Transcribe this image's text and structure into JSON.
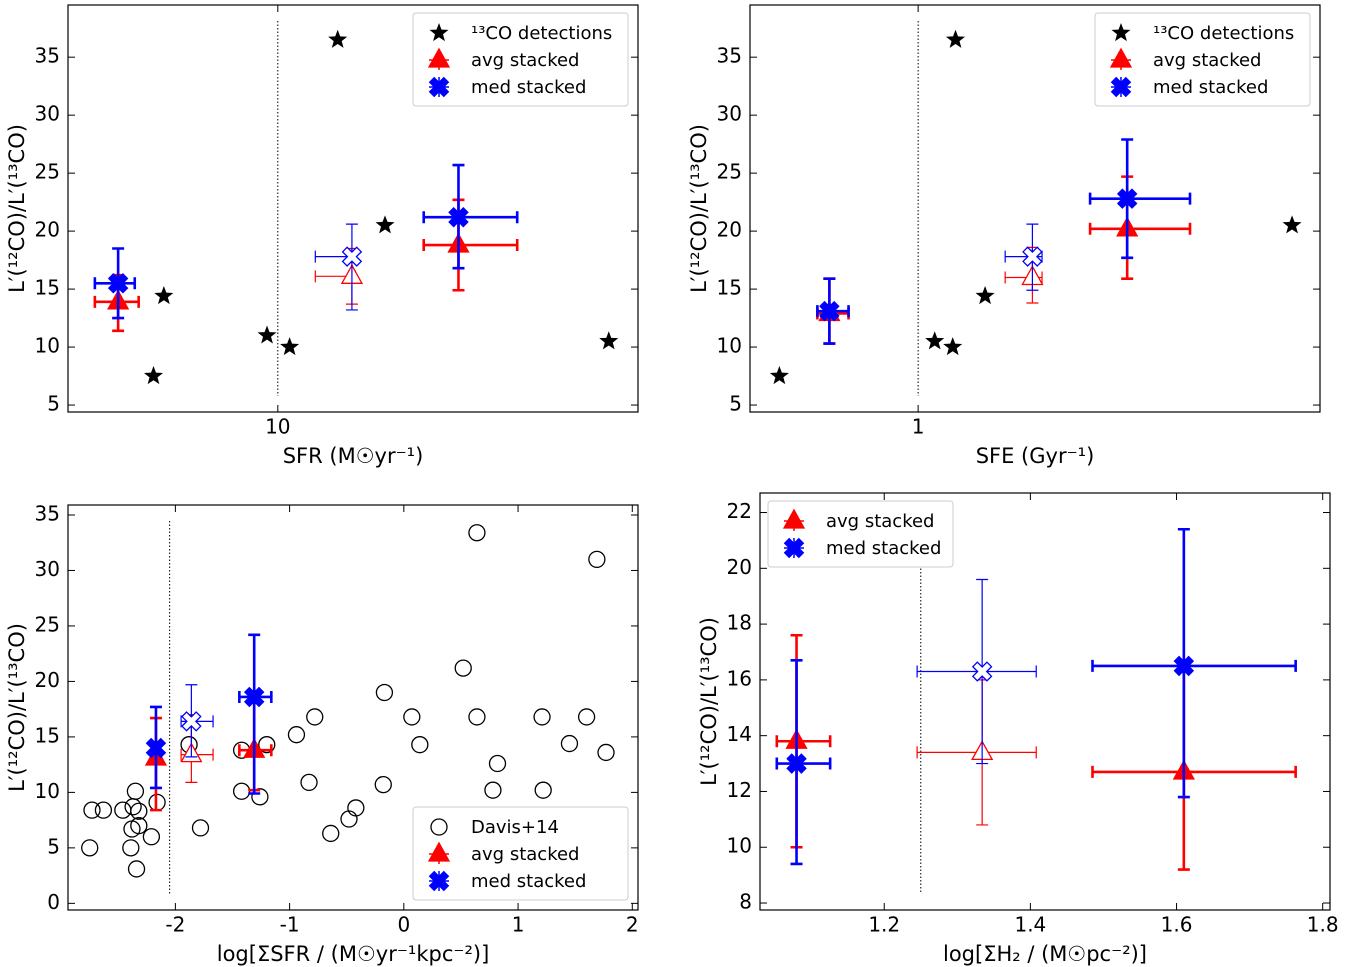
{
  "chart_data": [
    {
      "type": "scatter",
      "xlabel": "SFR (M☉yr⁻¹)",
      "ylabel": "L′(¹²CO)/L′(¹³CO)",
      "log_x": true,
      "xlim": [
        3.0,
        79
      ],
      "ylim": [
        4.4,
        39.5
      ],
      "xticks": [
        10
      ],
      "yticks": [
        5,
        10,
        15,
        20,
        25,
        30,
        35
      ],
      "vline": 10,
      "legend": "upper right",
      "series": [
        {
          "name": "¹³CO detections",
          "color": "#000000",
          "marker": "star",
          "x": [
            4.9,
            5.2,
            9.4,
            10.7,
            14.1,
            18.5,
            66.8
          ],
          "values": [
            7.5,
            14.4,
            11.0,
            10.0,
            36.5,
            20.5,
            10.5
          ]
        },
        {
          "name": "avg stacked",
          "color": "#ff0000",
          "marker": "triangle",
          "filled": [
            true,
            false,
            true
          ],
          "x": [
            4.0,
            15.3,
            28.2
          ],
          "values": [
            13.9,
            16.1,
            18.8
          ],
          "xerr": [
            [
              0.5,
              0.5
            ],
            [
              2.9,
              0.3
            ],
            [
              5.1,
              11.3
            ]
          ],
          "yerr": [
            [
              2.5,
              2.3
            ],
            [
              2.4,
              2.4
            ],
            [
              3.9,
              3.9
            ]
          ]
        },
        {
          "name": "med stacked",
          "color": "#0000ff",
          "marker": "xmark",
          "filled": [
            true,
            false,
            true
          ],
          "x": [
            4.0,
            15.3,
            28.2
          ],
          "values": [
            15.5,
            17.8,
            21.2
          ],
          "xerr": [
            [
              0.5,
              0.4
            ],
            [
              2.9,
              0.3
            ],
            [
              5.1,
              11.3
            ]
          ],
          "yerr": [
            [
              3.0,
              3.0
            ],
            [
              4.6,
              2.8
            ],
            [
              4.4,
              4.5
            ]
          ]
        }
      ]
    },
    {
      "type": "scatter",
      "xlabel": "SFE (Gyr⁻¹)",
      "ylabel": "L′(¹²CO)/L′(¹³CO)",
      "log_x": true,
      "xlim": [
        0.38,
        10.1
      ],
      "ylim": [
        4.4,
        39.5
      ],
      "xticks": [
        1
      ],
      "yticks": [
        5,
        10,
        15,
        20,
        25,
        30,
        35
      ],
      "vline": 1,
      "legend": "upper right",
      "series": [
        {
          "name": "¹³CO detections",
          "color": "#000000",
          "marker": "star",
          "x": [
            0.45,
            1.1,
            1.22,
            1.24,
            1.47,
            8.6
          ],
          "values": [
            7.5,
            10.5,
            10.0,
            36.5,
            14.4,
            20.5
          ]
        },
        {
          "name": "avg stacked",
          "color": "#ff0000",
          "marker": "triangle",
          "filled": [
            true,
            false,
            true
          ],
          "x": [
            0.6,
            1.93,
            3.33
          ],
          "values": [
            12.9,
            16.0,
            20.2
          ],
          "xerr": [
            [
              0.04,
              0.07
            ],
            [
              0.28,
              0.11
            ],
            [
              0.64,
              1.45
            ]
          ],
          "yerr": [
            [
              2.6,
              3.0
            ],
            [
              2.2,
              2.6
            ],
            [
              4.3,
              4.5
            ]
          ]
        },
        {
          "name": "med stacked",
          "color": "#0000ff",
          "marker": "xmark",
          "filled": [
            true,
            false,
            true
          ],
          "x": [
            0.6,
            1.93,
            3.33
          ],
          "values": [
            13.1,
            17.8,
            22.8
          ],
          "xerr": [
            [
              0.04,
              0.07
            ],
            [
              0.28,
              0.11
            ],
            [
              0.64,
              1.45
            ]
          ],
          "yerr": [
            [
              2.8,
              2.8
            ],
            [
              2.9,
              2.8
            ],
            [
              5.1,
              5.1
            ]
          ]
        }
      ]
    },
    {
      "type": "scatter",
      "xlabel": "log[ΣSFR / (M☉yr⁻¹kpc⁻²)]",
      "ylabel": "L′(¹²CO)/L′(¹³CO)",
      "log_x": false,
      "xlim": [
        -2.94,
        2.05
      ],
      "ylim": [
        -0.6,
        35.9
      ],
      "xticks": [
        -2,
        -1,
        0,
        1,
        2
      ],
      "yticks": [
        0,
        5,
        10,
        15,
        20,
        25,
        30,
        35
      ],
      "vline": -2.05,
      "legend": "lower right",
      "series": [
        {
          "name": "Davis+14",
          "color": "#000000",
          "marker": "circle",
          "x": [
            -2.75,
            -2.73,
            -2.63,
            -2.46,
            -2.38,
            -2.39,
            -2.37,
            -2.35,
            -2.34,
            -2.32,
            -2.32,
            -2.21,
            -2.16,
            -1.88,
            -1.78,
            -1.42,
            -1.42,
            -1.26,
            -1.2,
            -0.94,
            -0.83,
            -0.78,
            -0.64,
            -0.48,
            -0.42,
            -0.18,
            -0.17,
            0.07,
            0.14,
            0.52,
            0.64,
            0.64,
            0.78,
            0.82,
            1.21,
            1.22,
            1.45,
            1.6,
            1.69,
            1.77
          ],
          "values": [
            5.0,
            8.4,
            8.4,
            8.4,
            6.7,
            5.0,
            8.7,
            10.1,
            3.1,
            7.0,
            8.3,
            6.0,
            9.1,
            14.3,
            6.8,
            13.8,
            10.1,
            9.6,
            14.3,
            15.2,
            10.9,
            16.8,
            6.3,
            7.6,
            8.6,
            10.7,
            19.0,
            16.8,
            14.3,
            21.2,
            33.4,
            16.8,
            10.2,
            12.6,
            16.8,
            10.2,
            14.4,
            16.8,
            31.0,
            13.6
          ]
        },
        {
          "name": "avg stacked",
          "color": "#ff0000",
          "marker": "triangle",
          "filled": [
            true,
            false,
            true
          ],
          "x": [
            -2.17,
            -1.86,
            -1.31
          ],
          "values": [
            13.1,
            13.4,
            13.8
          ],
          "xerr": [
            null,
            [
              0.09,
              0.19
            ],
            [
              0.13,
              0.15
            ]
          ],
          "yerr": [
            [
              4.7,
              3.6
            ],
            [
              2.5,
              3.6
            ],
            [
              3.6,
              4.5
            ]
          ]
        },
        {
          "name": "med stacked",
          "color": "#0000ff",
          "marker": "xmark",
          "filled": [
            true,
            false,
            true
          ],
          "x": [
            -2.17,
            -1.86,
            -1.31
          ],
          "values": [
            14.0,
            16.4,
            18.6
          ],
          "xerr": [
            null,
            [
              0.09,
              0.19
            ],
            [
              0.13,
              0.15
            ]
          ],
          "yerr": [
            [
              3.6,
              3.7
            ],
            [
              3.2,
              3.3
            ],
            [
              8.7,
              5.6
            ]
          ]
        }
      ]
    },
    {
      "type": "scatter",
      "xlabel": "log[ΣH₂ / (M☉pc⁻²)]",
      "ylabel": "L′(¹²CO)/L′(¹³CO)",
      "log_x": false,
      "xlim": [
        1.03,
        1.81
      ],
      "ylim": [
        7.75,
        22.7
      ],
      "xticks": [
        1.2,
        1.4,
        1.6,
        1.8
      ],
      "yticks": [
        8,
        10,
        12,
        14,
        16,
        18,
        20,
        22
      ],
      "vline": 1.25,
      "legend": "upper left",
      "series": [
        {
          "name": "avg stacked",
          "color": "#ff0000",
          "marker": "triangle",
          "filled": [
            true,
            false,
            true
          ],
          "x": [
            1.08,
            1.334,
            1.61
          ],
          "values": [
            13.8,
            13.4,
            12.7
          ],
          "xerr": [
            [
              0.027,
              0.046
            ],
            [
              0.089,
              0.074
            ],
            [
              0.125,
              0.153
            ]
          ],
          "yerr": [
            [
              3.8,
              3.8
            ],
            [
              2.6,
              2.6
            ],
            [
              3.5,
              3.7
            ]
          ]
        },
        {
          "name": "med stacked",
          "color": "#0000ff",
          "marker": "xmark",
          "filled": [
            true,
            false,
            true
          ],
          "x": [
            1.08,
            1.334,
            1.61
          ],
          "values": [
            13.0,
            16.3,
            16.5
          ],
          "xerr": [
            [
              0.027,
              0.046
            ],
            [
              0.089,
              0.074
            ],
            [
              0.125,
              0.153
            ]
          ],
          "yerr": [
            [
              3.6,
              3.7
            ],
            [
              3.3,
              3.3
            ],
            [
              4.7,
              4.9
            ]
          ]
        }
      ]
    }
  ]
}
